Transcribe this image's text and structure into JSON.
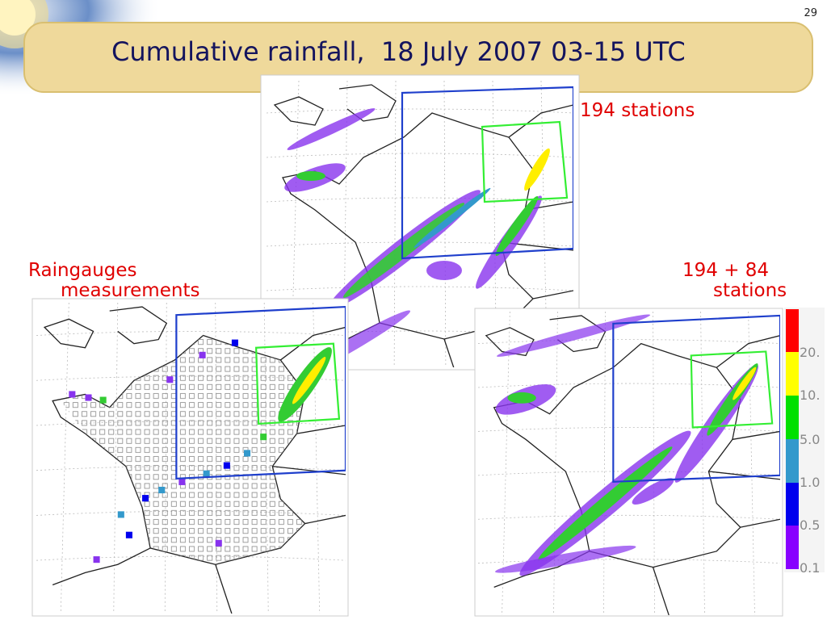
{
  "slide_number": "29",
  "title": "Cumulative rainfall,  18 July 2007 03-15 UTC",
  "annotations": {
    "top_map": "194 stations",
    "left_map": [
      "Raingauges",
      "measurements"
    ],
    "right_map": [
      "194 + 84",
      "stations"
    ]
  },
  "legend": {
    "labels": [
      "20.",
      "10.",
      "5.0",
      "1.0",
      "0.5",
      "0.1"
    ]
  }
}
